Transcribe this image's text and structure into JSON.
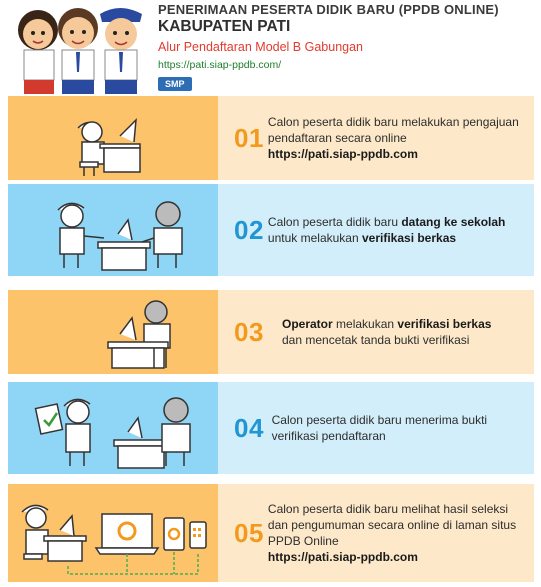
{
  "header": {
    "line1": "PENERIMAAN PESERTA DIDIK BARU (PPDB ONLINE)",
    "line2": "KABUPATEN PATI",
    "line3": "Alur Pendaftaran Model B Gabungan",
    "url": "https://pati.siap-ppdb.com/",
    "badge": "SMP"
  },
  "steps": [
    {
      "num": "01",
      "a": "Calon peserta didik baru melakukan pengajuan pendaftaran secara online",
      "b": "https://pati.siap-ppdb.com"
    },
    {
      "num": "02",
      "a": "Calon peserta didik baru ",
      "b": "datang ke sekolah",
      "c": " untuk melakukan ",
      "d": "verifikasi berkas"
    },
    {
      "num": "03",
      "a": "Operator",
      "b": " melakukan ",
      "c": "verifikasi berkas",
      "d": "dan mencetak tanda bukti verifikasi"
    },
    {
      "num": "04",
      "a": "Calon peserta didik baru menerima bukti verifikasi pendaftaran"
    },
    {
      "num": "05",
      "a": "Calon peserta didik baru melihat hasil seleksi dan pengumuman secara online di laman situs PPDB Online",
      "b": "https://pati.siap-ppdb.com"
    }
  ]
}
